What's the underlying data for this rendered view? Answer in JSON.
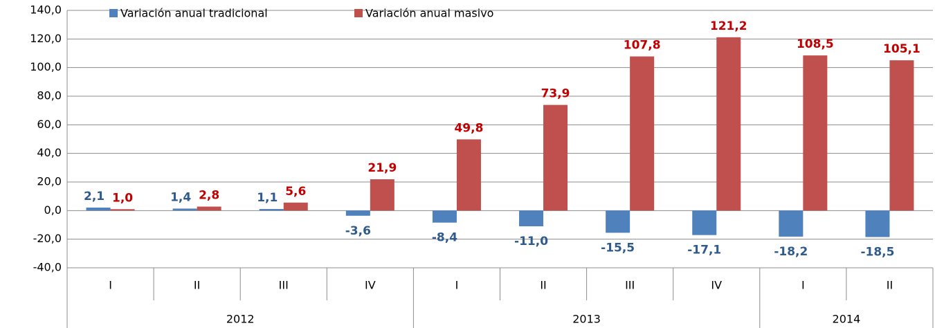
{
  "chart_data": {
    "type": "bar",
    "groups": [
      {
        "name": "2012",
        "categories": [
          "I",
          "II",
          "III",
          "IV"
        ]
      },
      {
        "name": "2013",
        "categories": [
          "I",
          "II",
          "III",
          "IV"
        ]
      },
      {
        "name": "2014",
        "categories": [
          "I",
          "II"
        ]
      }
    ],
    "series": [
      {
        "name": "Variación anual tradicional",
        "color": "#4f81bd",
        "label_color": "#2f5a8c",
        "values": [
          2.1,
          1.4,
          1.1,
          -3.6,
          -8.4,
          -11.0,
          -15.5,
          -17.1,
          -18.2,
          -18.5
        ],
        "value_labels": [
          "2,1",
          "1,4",
          "1,1",
          "-3,6",
          "-8,4",
          "-11,0",
          "-15,5",
          "-17,1",
          "-18,2",
          "-18,5"
        ]
      },
      {
        "name": "Variación anual masivo",
        "color": "#c0504d",
        "label_color": "#c00000",
        "values": [
          1.0,
          2.8,
          5.6,
          21.9,
          49.8,
          73.9,
          107.8,
          121.2,
          108.5,
          105.1
        ],
        "value_labels": [
          "1,0",
          "2,8",
          "5,6",
          "21,9",
          "49,8",
          "73,9",
          "107,8",
          "121,2",
          "108,5",
          "105,1"
        ]
      }
    ],
    "ylim": [
      -40,
      140
    ],
    "yticks": [
      {
        "value": -40,
        "label": "-40,0"
      },
      {
        "value": -20,
        "label": "-20,0"
      },
      {
        "value": 0,
        "label": "0,0"
      },
      {
        "value": 20,
        "label": "20,0"
      },
      {
        "value": 40,
        "label": "40,0"
      },
      {
        "value": 60,
        "label": "60,0"
      },
      {
        "value": 80,
        "label": "80,0"
      },
      {
        "value": 100,
        "label": "100,0"
      },
      {
        "value": 120,
        "label": "120,0"
      },
      {
        "value": 140,
        "label": "140,0"
      }
    ],
    "grid": true,
    "legend": "top"
  }
}
